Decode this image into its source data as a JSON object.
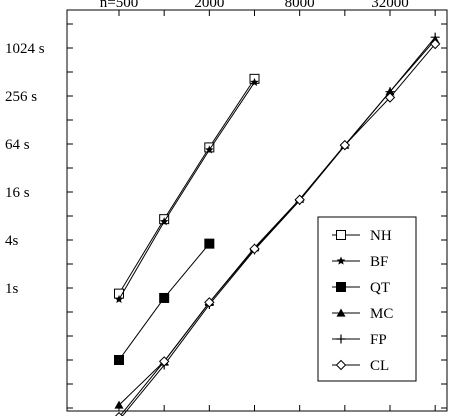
{
  "chart_data": {
    "type": "line",
    "x_scale": "log2",
    "y_scale": "log2",
    "xlim": [
      500,
      64000
    ],
    "ylim": [
      0.03125,
      2048
    ],
    "grid": false,
    "legend_position": "bottom-right",
    "x_ticks": [
      {
        "value": 500,
        "label": "n=500"
      },
      {
        "value": 2000,
        "label": "2000"
      },
      {
        "value": 8000,
        "label": "8000"
      },
      {
        "value": 32000,
        "label": "32000"
      }
    ],
    "y_ticks": [
      {
        "value": 1,
        "label": "1s"
      },
      {
        "value": 4,
        "label": "4s"
      },
      {
        "value": 16,
        "label": "16 s"
      },
      {
        "value": 64,
        "label": "64 s"
      },
      {
        "value": 256,
        "label": "256 s"
      },
      {
        "value": 1024,
        "label": "1024  s"
      }
    ],
    "series": [
      {
        "name": "NH",
        "marker": "open-square",
        "x": [
          500,
          1000,
          2000,
          4000
        ],
        "y": [
          0.85,
          7.3,
          58,
          420
        ]
      },
      {
        "name": "BF",
        "marker": "star",
        "x": [
          500,
          1000,
          2000,
          4000
        ],
        "y": [
          0.72,
          6.8,
          54,
          380
        ]
      },
      {
        "name": "QT",
        "marker": "filled-square",
        "x": [
          500,
          1000,
          2000
        ],
        "y": [
          0.125,
          0.75,
          3.6
        ]
      },
      {
        "name": "MC",
        "marker": "filled-triangle",
        "x": [
          500,
          1000,
          2000,
          4000,
          8000,
          16000,
          32000,
          64000
        ],
        "y": [
          0.034,
          0.12,
          0.66,
          3.2,
          13,
          62,
          290,
          1300
        ]
      },
      {
        "name": "FP",
        "marker": "plus",
        "x": [
          500,
          1000,
          2000,
          4000,
          8000,
          16000,
          32000,
          64000
        ],
        "y": [
          0.022,
          0.108,
          0.62,
          3.0,
          12.5,
          61,
          290,
          1400
        ]
      },
      {
        "name": "CL",
        "marker": "open-diamond",
        "x": [
          500,
          1000,
          2000,
          4000,
          8000,
          16000,
          32000,
          64000
        ],
        "y": [
          0.024,
          0.12,
          0.66,
          3.1,
          12.8,
          62,
          245,
          1150
        ]
      }
    ]
  }
}
